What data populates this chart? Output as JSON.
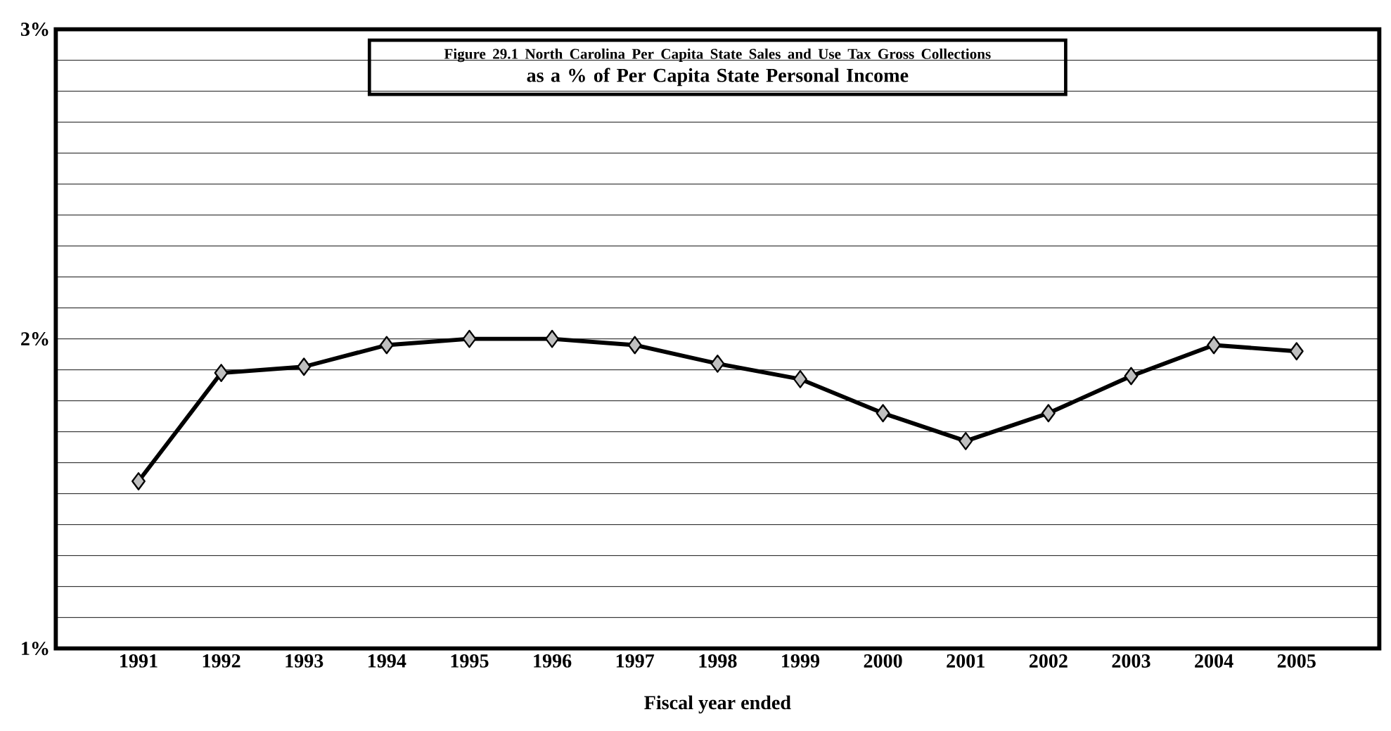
{
  "chart_data": {
    "type": "line",
    "title": "Figure 29.1 North Carolina Per Capita State Sales and Use Tax Gross Collections",
    "subtitle": "as a % of Per Capita State Personal Income",
    "xlabel": "Fiscal year ended",
    "categories": [
      "1991",
      "1992",
      "1993",
      "1994",
      "1995",
      "1996",
      "1997",
      "1998",
      "1999",
      "2000",
      "2001",
      "2002",
      "2003",
      "2004",
      "2005"
    ],
    "series": [
      {
        "color": "#000000",
        "values": [
          1.54,
          1.89,
          1.91,
          1.98,
          2.0,
          2.0,
          1.98,
          1.92,
          1.87,
          1.76,
          1.67,
          1.76,
          1.88,
          1.98,
          1.96
        ]
      }
    ],
    "ylim": [
      1,
      3
    ],
    "yticks": [
      {
        "value": 1,
        "label": "1%"
      },
      {
        "value": 1.1,
        "label": null
      },
      {
        "value": 1.2,
        "label": null
      },
      {
        "value": 1.3,
        "label": null
      },
      {
        "value": 1.4,
        "label": null
      },
      {
        "value": 1.5,
        "label": null
      },
      {
        "value": 1.6,
        "label": null
      },
      {
        "value": 1.7,
        "label": null
      },
      {
        "value": 1.8,
        "label": null
      },
      {
        "value": 1.9,
        "label": null
      },
      {
        "value": 2,
        "label": "2%"
      },
      {
        "value": 2.1,
        "label": null
      },
      {
        "value": 2.2,
        "label": null
      },
      {
        "value": 2.3,
        "label": null
      },
      {
        "value": 2.4,
        "label": null
      },
      {
        "value": 2.5,
        "label": null
      },
      {
        "value": 2.6,
        "label": null
      },
      {
        "value": 2.7,
        "label": null
      },
      {
        "value": 2.8,
        "label": null
      },
      {
        "value": 2.9,
        "label": null
      },
      {
        "value": 3,
        "label": "3%"
      }
    ],
    "grid": "y",
    "marker": "diamond",
    "line_style": "solid"
  }
}
